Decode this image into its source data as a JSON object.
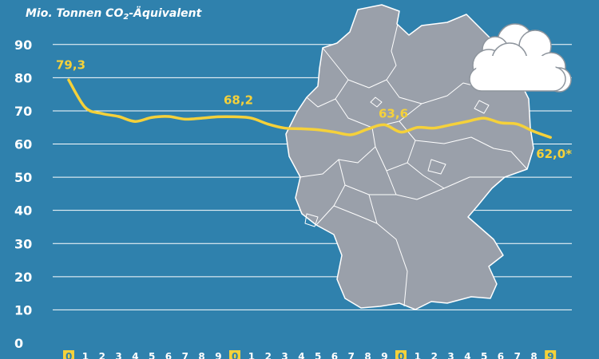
{
  "chart_data": {
    "type": "line",
    "ylabel_prefix": "Mio. Tonnen CO",
    "ylabel_sub": "2",
    "ylabel_suffix": "-Äquivalent",
    "ylim": [
      0,
      90
    ],
    "yticks": [
      "0",
      "10",
      "20",
      "30",
      "40",
      "50",
      "60",
      "70",
      "80",
      "90"
    ],
    "x_tick_labels": [
      "0",
      "1",
      "2",
      "3",
      "4",
      "5",
      "6",
      "7",
      "8",
      "9",
      "0",
      "1",
      "2",
      "3",
      "4",
      "5",
      "6",
      "7",
      "8",
      "9",
      "0",
      "1",
      "2",
      "3",
      "4",
      "5",
      "6",
      "7",
      "8",
      "9"
    ],
    "x": [
      0,
      1,
      2,
      3,
      4,
      5,
      6,
      7,
      8,
      9,
      10,
      11,
      12,
      13,
      14,
      15,
      16,
      17,
      18,
      19,
      20,
      21,
      22,
      23,
      24,
      25,
      26,
      27,
      28,
      29
    ],
    "highlighted_x": [
      0,
      10,
      20,
      29
    ],
    "series": [
      {
        "values": [
          79.3,
          71.0,
          69.2,
          68.3,
          66.8,
          68.0,
          68.3,
          67.5,
          67.8,
          68.2,
          68.2,
          67.8,
          66.0,
          64.8,
          64.6,
          64.3,
          63.6,
          62.8,
          64.5,
          65.8,
          63.6,
          65.0,
          64.8,
          65.8,
          66.8,
          67.8,
          66.4,
          66.0,
          63.8,
          62.0
        ]
      }
    ],
    "data_labels": [
      {
        "x": 0,
        "text": "79,3"
      },
      {
        "x": 10,
        "text": "68,2"
      },
      {
        "x": 20,
        "text": "63,6"
      },
      {
        "x": 29,
        "text": "62,0*"
      }
    ],
    "grid": true,
    "colors": {
      "background": "#2f81ad",
      "line": "#f5d13a",
      "label": "#f5d13a",
      "gridline": "#ffffff",
      "map": "#9aa0aa",
      "map_border": "#ffffff",
      "cloud": "#ffffff",
      "cloud_outline": "#8e959d",
      "tick_highlight": "#f5d13a"
    }
  }
}
